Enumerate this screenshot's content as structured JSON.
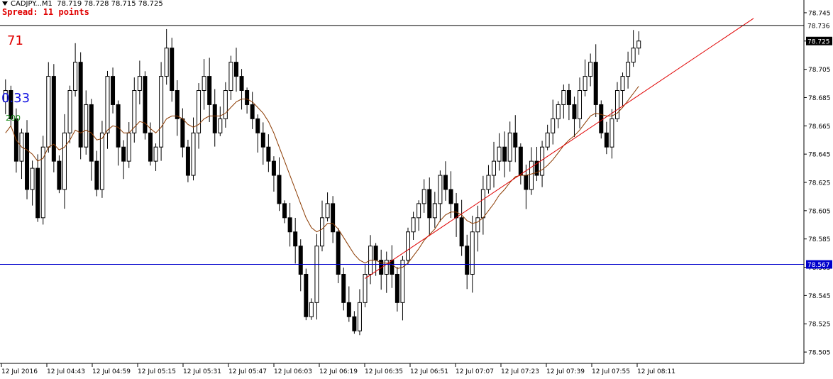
{
  "header": {
    "symbol": "CADJPY...M1",
    "ohlc": "78.719 78.728 78.715 78.725",
    "spread": "Spread: 11 points"
  },
  "indicators": {
    "a": "71",
    "b": "0.33",
    "c": "200"
  },
  "colors": {
    "background": "#ffffff",
    "candle_up": "#ffffff",
    "candle_down": "#000000",
    "candle_outline": "#000000",
    "moving_average": "#8b3a00",
    "trendline": "#e00000",
    "support_line": "#0000cc",
    "current_price_label": "#000000"
  },
  "chart_data": {
    "type": "candlestick",
    "ylim": [
      78.497,
      78.752
    ],
    "y_ticks": [
      "78.745",
      "78.725",
      "78.705",
      "78.685",
      "78.665",
      "78.645",
      "78.625",
      "78.605",
      "78.585",
      "78.565",
      "78.545",
      "78.525",
      "78.505"
    ],
    "x_ticks": [
      "12 Jul 2016",
      "12 Jul 04:43",
      "12 Jul 04:59",
      "12 Jul 05:15",
      "12 Jul 05:31",
      "12 Jul 05:47",
      "12 Jul 06:03",
      "12 Jul 06:19",
      "12 Jul 06:35",
      "12 Jul 06:51",
      "12 Jul 07:07",
      "12 Jul 07:23",
      "12 Jul 07:39",
      "12 Jul 07:55",
      "12 Jul 08:11"
    ],
    "current_price": "78.725",
    "high_price": "78.736",
    "support_price": "78.567",
    "support_label": "78.567",
    "closes": [
      78.69,
      78.67,
      78.64,
      78.66,
      78.62,
      78.635,
      78.6,
      78.65,
      78.7,
      78.64,
      78.62,
      78.66,
      78.69,
      78.71,
      78.65,
      78.68,
      78.64,
      78.62,
      78.66,
      78.7,
      78.68,
      78.65,
      78.64,
      78.66,
      78.69,
      78.7,
      78.66,
      78.64,
      78.65,
      78.7,
      78.72,
      78.69,
      78.67,
      78.65,
      78.63,
      78.66,
      78.69,
      78.7,
      78.68,
      78.66,
      78.67,
      78.69,
      78.71,
      78.7,
      78.69,
      78.68,
      78.67,
      78.66,
      78.65,
      78.64,
      78.63,
      78.61,
      78.6,
      78.59,
      78.58,
      78.56,
      78.53,
      78.54,
      78.58,
      78.6,
      78.61,
      78.59,
      78.56,
      78.54,
      78.53,
      78.52,
      78.54,
      78.56,
      78.58,
      78.57,
      78.56,
      78.57,
      78.56,
      78.54,
      78.57,
      78.59,
      78.6,
      78.61,
      78.62,
      78.6,
      78.61,
      78.63,
      78.62,
      78.61,
      78.6,
      78.58,
      78.56,
      78.59,
      78.6,
      78.62,
      78.63,
      78.64,
      78.65,
      78.64,
      78.66,
      78.65,
      78.63,
      78.62,
      78.64,
      78.63,
      78.65,
      78.66,
      78.67,
      78.68,
      78.69,
      78.68,
      78.67,
      78.69,
      78.7,
      78.71,
      78.68,
      78.66,
      78.65,
      78.67,
      78.69,
      78.7,
      78.71,
      78.72,
      78.725
    ],
    "ma_values": [
      78.66,
      78.665,
      78.655,
      78.65,
      78.648,
      78.645,
      78.64,
      78.642,
      78.65,
      78.652,
      78.648,
      78.65,
      78.655,
      78.662,
      78.66,
      78.662,
      78.66,
      78.655,
      78.656,
      78.662,
      78.665,
      78.664,
      78.66,
      78.66,
      78.664,
      78.668,
      78.667,
      78.663,
      78.66,
      78.664,
      78.67,
      78.672,
      78.672,
      78.67,
      78.666,
      78.664,
      78.666,
      78.67,
      78.672,
      78.672,
      78.672,
      78.674,
      78.678,
      78.682,
      78.684,
      78.684,
      78.682,
      78.678,
      78.674,
      78.668,
      78.66,
      78.65,
      78.64,
      78.63,
      78.62,
      78.61,
      78.6,
      78.593,
      78.59,
      78.592,
      78.596,
      78.596,
      78.592,
      78.586,
      78.58,
      78.574,
      78.57,
      78.568,
      78.57,
      78.57,
      78.568,
      78.568,
      78.567,
      78.564,
      78.565,
      78.568,
      78.573,
      78.578,
      78.584,
      78.588,
      78.592,
      78.598,
      78.602,
      78.604,
      78.604,
      78.602,
      78.598,
      78.596,
      78.597,
      78.6,
      78.605,
      78.61,
      78.616,
      78.62,
      78.625,
      78.629,
      78.63,
      78.63,
      78.631,
      78.632,
      78.634,
      78.637,
      78.641,
      78.646,
      78.651,
      78.655,
      78.658,
      78.662,
      78.667,
      78.672,
      78.674,
      78.673,
      78.672,
      78.672,
      78.674,
      78.678,
      78.683,
      78.688,
      78.693
    ]
  }
}
